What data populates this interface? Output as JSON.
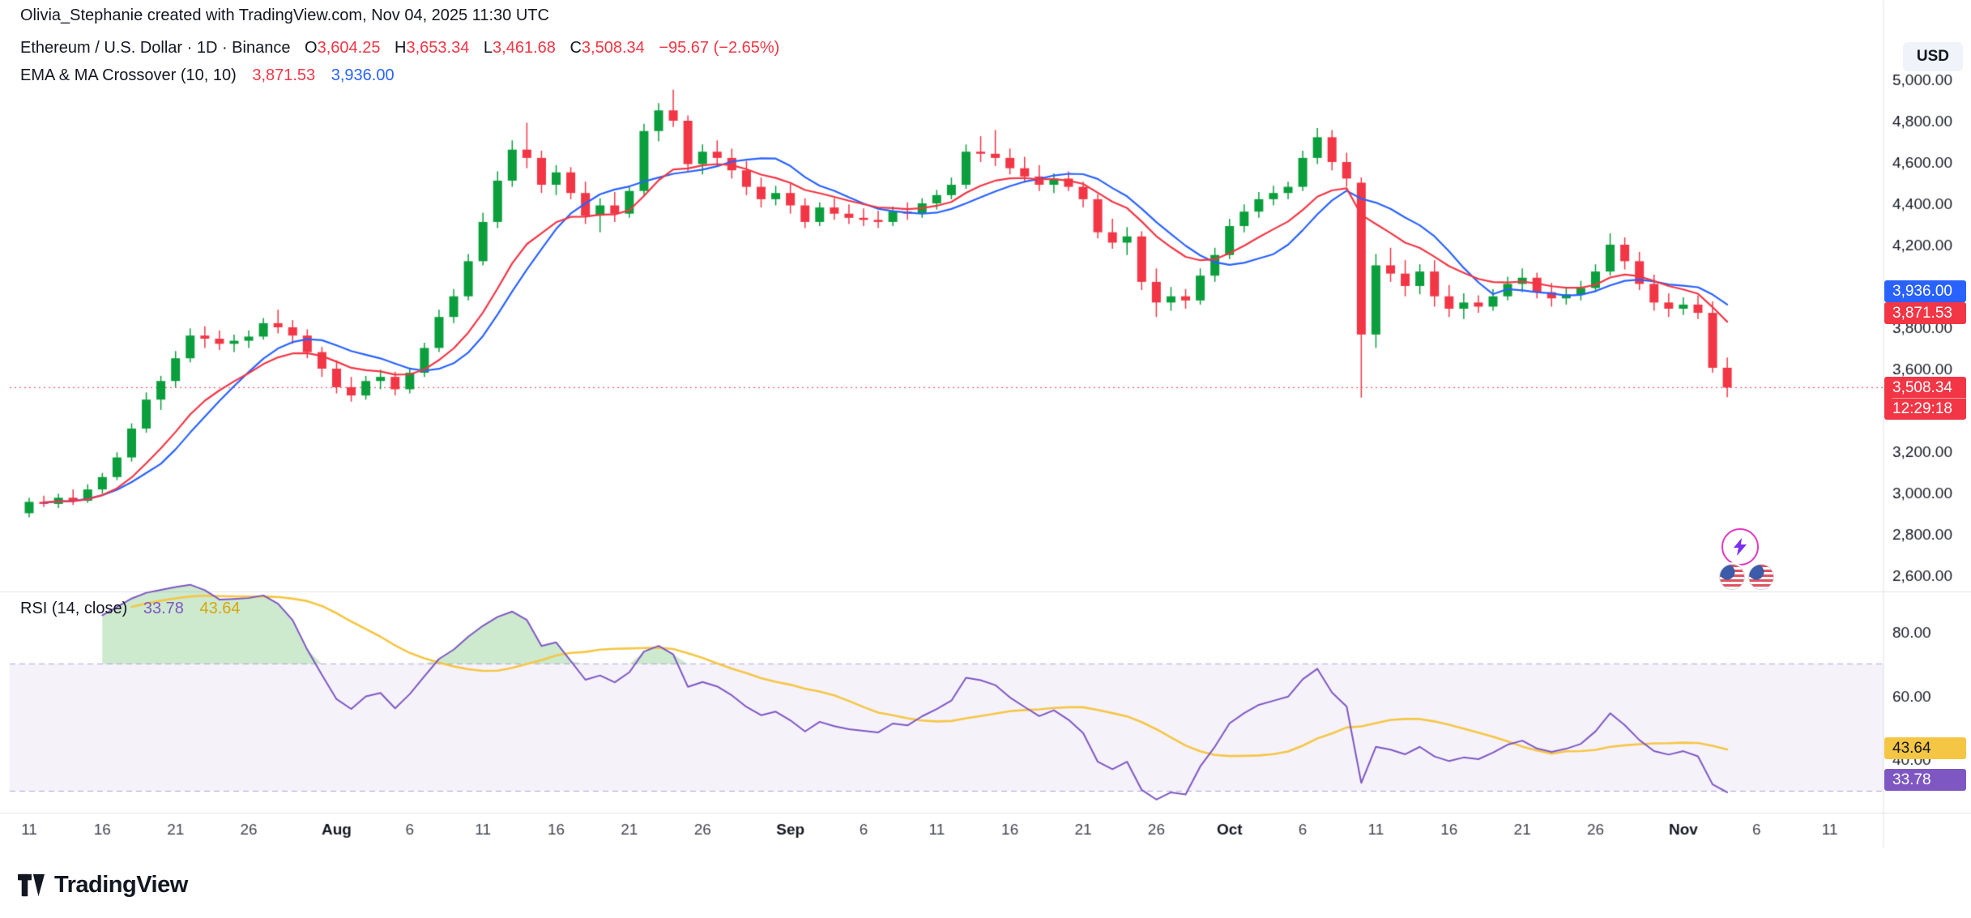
{
  "attribution": "Olivia_Stephanie created with TradingView.com, Nov 04, 2025 11:30 UTC",
  "header": {
    "symbol_line": "Ethereum / U.S. Dollar · 1D · Binance",
    "ohlc": [
      {
        "k": "O",
        "v": "3,604.25"
      },
      {
        "k": "H",
        "v": "3,653.34"
      },
      {
        "k": "L",
        "v": "3,461.68"
      },
      {
        "k": "C",
        "v": "3,508.34"
      }
    ],
    "change": "−95.67 (−2.65%)",
    "indicator_label": "EMA & MA Crossover (10, 10)",
    "ema_value": "3,871.53",
    "ma_value": "3,936.00"
  },
  "rsi_legend": {
    "label": "RSI (14, close)",
    "rsi_value": "33.78",
    "ma_value": "43.64"
  },
  "axis": {
    "currency_button": "USD",
    "price_badges": {
      "ma": "3,936.00",
      "ema": "3,871.53",
      "last": "3,508.34",
      "countdown": "12:29:18"
    },
    "rsi_badges": {
      "ma": "43.64",
      "rsi": "33.78"
    }
  },
  "footer": {
    "logo_text": "TradingView"
  },
  "colors": {
    "up": "#0a9e3c",
    "down": "#f23645",
    "ema": "#f23645",
    "ma": "#2962ff",
    "rsi": "#7e57c2",
    "rsi_ma": "#f5c644",
    "rsi_ma_text": "#d8a60a",
    "axis_text": "#131722",
    "grid_sep": "#e0e3eb"
  },
  "chart_data": {
    "type": "candlestick",
    "title": "Ethereum / U.S. Dollar",
    "timeframe": "1D",
    "exchange": "Binance",
    "start_date": "2025-07-11",
    "end_date": "2025-11-04",
    "last_price": 3508.34,
    "price_axis": {
      "min_label": 2600,
      "max_label": 5000,
      "step": 200,
      "domain": [
        2533,
        5200
      ]
    },
    "total_slots": 126,
    "x_ticks": [
      {
        "i": 0,
        "label": "11"
      },
      {
        "i": 5,
        "label": "16"
      },
      {
        "i": 10,
        "label": "21"
      },
      {
        "i": 15,
        "label": "26"
      },
      {
        "i": 21,
        "label": "Aug",
        "month": true
      },
      {
        "i": 26,
        "label": "6"
      },
      {
        "i": 31,
        "label": "11"
      },
      {
        "i": 36,
        "label": "16"
      },
      {
        "i": 41,
        "label": "21"
      },
      {
        "i": 46,
        "label": "26"
      },
      {
        "i": 52,
        "label": "Sep",
        "month": true
      },
      {
        "i": 57,
        "label": "6"
      },
      {
        "i": 62,
        "label": "11"
      },
      {
        "i": 67,
        "label": "16"
      },
      {
        "i": 72,
        "label": "21"
      },
      {
        "i": 77,
        "label": "26"
      },
      {
        "i": 82,
        "label": "Oct",
        "month": true
      },
      {
        "i": 87,
        "label": "6"
      },
      {
        "i": 92,
        "label": "11"
      },
      {
        "i": 97,
        "label": "16"
      },
      {
        "i": 102,
        "label": "21"
      },
      {
        "i": 107,
        "label": "26"
      },
      {
        "i": 113,
        "label": "Nov",
        "month": true
      },
      {
        "i": 118,
        "label": "6"
      },
      {
        "i": 123,
        "label": "11"
      }
    ],
    "overlays": [
      {
        "name": "EMA 10",
        "current": 3871.53
      },
      {
        "name": "MA 10",
        "current": 3936.0
      }
    ],
    "rsi": {
      "period": 14,
      "overbought": 70,
      "oversold": 30,
      "ticks": [
        80,
        60,
        40
      ],
      "domain": [
        24,
        92
      ],
      "last": 33.78,
      "ma_last": 43.64
    },
    "candles": [
      [
        2900,
        2975,
        2880,
        2955
      ],
      [
        2955,
        2985,
        2930,
        2945
      ],
      [
        2945,
        2995,
        2925,
        2975
      ],
      [
        2975,
        3015,
        2940,
        2960
      ],
      [
        2960,
        3040,
        2950,
        3015
      ],
      [
        3015,
        3095,
        2995,
        3075
      ],
      [
        3075,
        3195,
        3060,
        3170
      ],
      [
        3170,
        3335,
        3150,
        3310
      ],
      [
        3310,
        3485,
        3290,
        3450
      ],
      [
        3450,
        3565,
        3400,
        3540
      ],
      [
        3540,
        3685,
        3510,
        3650
      ],
      [
        3650,
        3795,
        3630,
        3760
      ],
      [
        3760,
        3805,
        3700,
        3745
      ],
      [
        3745,
        3785,
        3690,
        3720
      ],
      [
        3720,
        3765,
        3680,
        3735
      ],
      [
        3735,
        3785,
        3700,
        3755
      ],
      [
        3755,
        3845,
        3740,
        3820
      ],
      [
        3820,
        3885,
        3770,
        3800
      ],
      [
        3800,
        3835,
        3720,
        3760
      ],
      [
        3760,
        3790,
        3650,
        3680
      ],
      [
        3680,
        3705,
        3560,
        3600
      ],
      [
        3600,
        3640,
        3480,
        3510
      ],
      [
        3510,
        3560,
        3440,
        3470
      ],
      [
        3470,
        3565,
        3450,
        3540
      ],
      [
        3540,
        3595,
        3500,
        3560
      ],
      [
        3560,
        3585,
        3470,
        3500
      ],
      [
        3500,
        3605,
        3480,
        3580
      ],
      [
        3580,
        3725,
        3560,
        3700
      ],
      [
        3700,
        3885,
        3680,
        3850
      ],
      [
        3850,
        3985,
        3820,
        3950
      ],
      [
        3950,
        4155,
        3930,
        4120
      ],
      [
        4120,
        4355,
        4100,
        4310
      ],
      [
        4310,
        4555,
        4280,
        4510
      ],
      [
        4510,
        4705,
        4480,
        4660
      ],
      [
        4660,
        4790,
        4570,
        4620
      ],
      [
        4620,
        4655,
        4450,
        4490
      ],
      [
        4490,
        4585,
        4440,
        4550
      ],
      [
        4550,
        4575,
        4420,
        4450
      ],
      [
        4450,
        4505,
        4300,
        4340
      ],
      [
        4340,
        4425,
        4260,
        4390
      ],
      [
        4390,
        4455,
        4310,
        4350
      ],
      [
        4350,
        4485,
        4330,
        4460
      ],
      [
        4460,
        4785,
        4440,
        4750
      ],
      [
        4750,
        4885,
        4700,
        4850
      ],
      [
        4850,
        4950,
        4770,
        4800
      ],
      [
        4800,
        4825,
        4550,
        4590
      ],
      [
        4590,
        4685,
        4540,
        4650
      ],
      [
        4650,
        4705,
        4580,
        4620
      ],
      [
        4620,
        4665,
        4520,
        4560
      ],
      [
        4560,
        4605,
        4440,
        4480
      ],
      [
        4480,
        4525,
        4380,
        4420
      ],
      [
        4420,
        4485,
        4390,
        4450
      ],
      [
        4450,
        4495,
        4350,
        4390
      ],
      [
        4390,
        4425,
        4280,
        4310
      ],
      [
        4310,
        4405,
        4290,
        4380
      ],
      [
        4380,
        4425,
        4320,
        4350
      ],
      [
        4350,
        4395,
        4300,
        4330
      ],
      [
        4330,
        4375,
        4290,
        4320
      ],
      [
        4320,
        4365,
        4280,
        4310
      ],
      [
        4310,
        4385,
        4290,
        4360
      ],
      [
        4360,
        4405,
        4320,
        4350
      ],
      [
        4350,
        4425,
        4330,
        4400
      ],
      [
        4400,
        4465,
        4370,
        4440
      ],
      [
        4440,
        4525,
        4420,
        4490
      ],
      [
        4490,
        4685,
        4470,
        4650
      ],
      [
        4650,
        4725,
        4600,
        4640
      ],
      [
        4640,
        4755,
        4580,
        4620
      ],
      [
        4620,
        4665,
        4540,
        4570
      ],
      [
        4570,
        4625,
        4500,
        4530
      ],
      [
        4530,
        4585,
        4460,
        4490
      ],
      [
        4490,
        4545,
        4450,
        4520
      ],
      [
        4520,
        4555,
        4460,
        4480
      ],
      [
        4480,
        4505,
        4380,
        4420
      ],
      [
        4420,
        4445,
        4230,
        4260
      ],
      [
        4260,
        4325,
        4180,
        4210
      ],
      [
        4210,
        4285,
        4150,
        4240
      ],
      [
        4240,
        4265,
        3980,
        4020
      ],
      [
        4020,
        4085,
        3850,
        3920
      ],
      [
        3920,
        3995,
        3880,
        3950
      ],
      [
        3950,
        3985,
        3890,
        3930
      ],
      [
        3930,
        4085,
        3910,
        4050
      ],
      [
        4050,
        4185,
        4020,
        4150
      ],
      [
        4150,
        4325,
        4130,
        4290
      ],
      [
        4290,
        4395,
        4260,
        4360
      ],
      [
        4360,
        4455,
        4330,
        4420
      ],
      [
        4420,
        4485,
        4390,
        4450
      ],
      [
        4450,
        4505,
        4420,
        4480
      ],
      [
        4480,
        4655,
        4460,
        4620
      ],
      [
        4620,
        4765,
        4590,
        4720
      ],
      [
        4720,
        4755,
        4560,
        4600
      ],
      [
        4600,
        4645,
        4480,
        4520
      ],
      [
        4500,
        4525,
        3460,
        3765
      ],
      [
        3765,
        4155,
        3700,
        4100
      ],
      [
        4100,
        4185,
        4020,
        4060
      ],
      [
        4060,
        4125,
        3950,
        4000
      ],
      [
        4000,
        4105,
        3960,
        4070
      ],
      [
        4070,
        4125,
        3900,
        3950
      ],
      [
        3950,
        4005,
        3850,
        3890
      ],
      [
        3890,
        3965,
        3840,
        3920
      ],
      [
        3920,
        3955,
        3870,
        3900
      ],
      [
        3900,
        3985,
        3880,
        3950
      ],
      [
        3950,
        4045,
        3930,
        4010
      ],
      [
        4010,
        4085,
        3970,
        4040
      ],
      [
        4040,
        4065,
        3940,
        3970
      ],
      [
        3970,
        4015,
        3900,
        3940
      ],
      [
        3940,
        3995,
        3910,
        3960
      ],
      [
        3960,
        4025,
        3930,
        3990
      ],
      [
        3990,
        4105,
        3970,
        4070
      ],
      [
        4070,
        4255,
        4050,
        4200
      ],
      [
        4200,
        4235,
        4080,
        4120
      ],
      [
        4120,
        4165,
        3980,
        4010
      ],
      [
        4010,
        4055,
        3880,
        3920
      ],
      [
        3920,
        3965,
        3850,
        3890
      ],
      [
        3890,
        3945,
        3860,
        3910
      ],
      [
        3910,
        3955,
        3840,
        3870
      ],
      [
        3870,
        3925,
        3580,
        3604
      ],
      [
        3604.25,
        3653.34,
        3461.68,
        3508.34
      ]
    ]
  }
}
